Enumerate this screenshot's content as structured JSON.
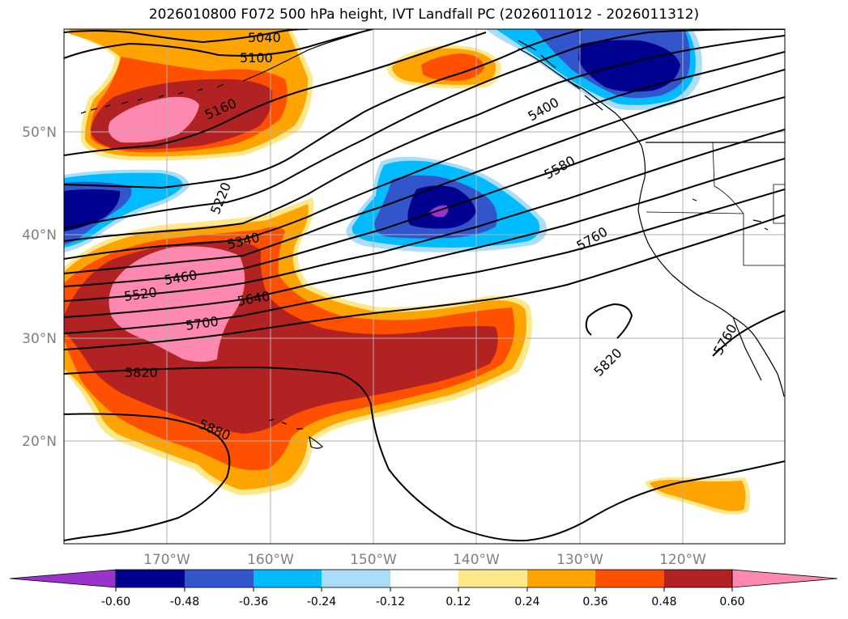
{
  "title": "2026010800 F072 500 hPa height, IVT Landfall PC (2026011012 - 2026011312)",
  "map": {
    "lon_ticks": [
      "170°W",
      "160°W",
      "150°W",
      "140°W",
      "130°W",
      "120°W"
    ],
    "lat_ticks": [
      "50°N",
      "40°N",
      "30°N",
      "20°N"
    ],
    "grid": true
  },
  "height_contours": {
    "units": "m",
    "labels": [
      "5040",
      "5100",
      "5160",
      "5220",
      "5340",
      "5400",
      "5460",
      "5520",
      "5580",
      "5640",
      "5700",
      "5760",
      "5820",
      "5880"
    ]
  },
  "colorbar": {
    "extend": "both",
    "ticks": [
      "-0.60",
      "-0.48",
      "-0.36",
      "-0.24",
      "-0.12",
      "0.12",
      "0.24",
      "0.36",
      "0.48",
      "0.60"
    ],
    "colors": {
      "below": "#9933cc",
      "c1": "#000090",
      "c2": "#3355cc",
      "c3": "#00bbff",
      "c4": "#aaddf8",
      "c5": "#ffffff",
      "c6": "#ffe88a",
      "c7": "#ffa400",
      "c8": "#ff5000",
      "c9": "#b22222",
      "above": "#ff88b0"
    }
  }
}
